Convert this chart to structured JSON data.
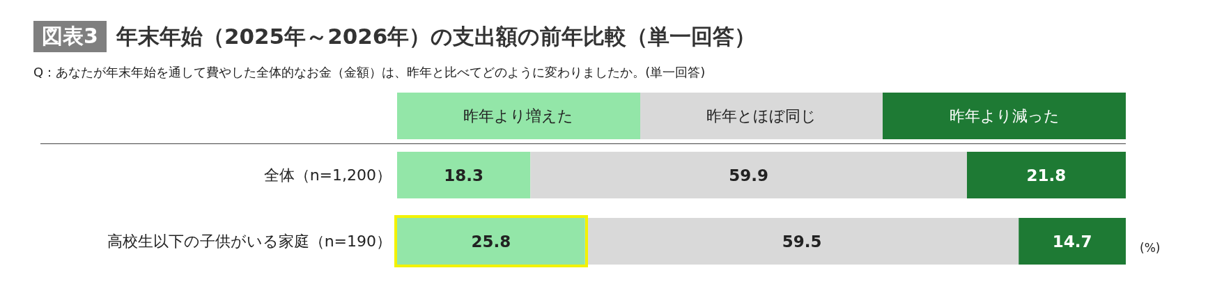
{
  "chart_data": {
    "type": "bar",
    "orientation": "horizontal",
    "stacked": true,
    "title": "図表3 年末年始（2025年～2026年）の支出額の前年比較（単一回答）",
    "subtitle": "Q：あなたが年末年始を通して費やした全体的なお金（金額）は、昨年と比べてどのように変わりましたか。(単一回答)",
    "categories": [
      "全体（n=1,200）",
      "高校生以下の子供がいる家庭（n=190）"
    ],
    "series": [
      {
        "name": "昨年より増えた",
        "color": "#93e6a8",
        "values": [
          18.3,
          25.8
        ]
      },
      {
        "name": "昨年とほぼ同じ",
        "color": "#d9d9d9",
        "values": [
          59.9,
          59.5
        ]
      },
      {
        "name": "昨年より減った",
        "color": "#1e7a34",
        "values": [
          21.8,
          14.7
        ]
      }
    ],
    "data_labels": true,
    "legend": "top",
    "annotations": [
      "(%)"
    ]
  }
}
